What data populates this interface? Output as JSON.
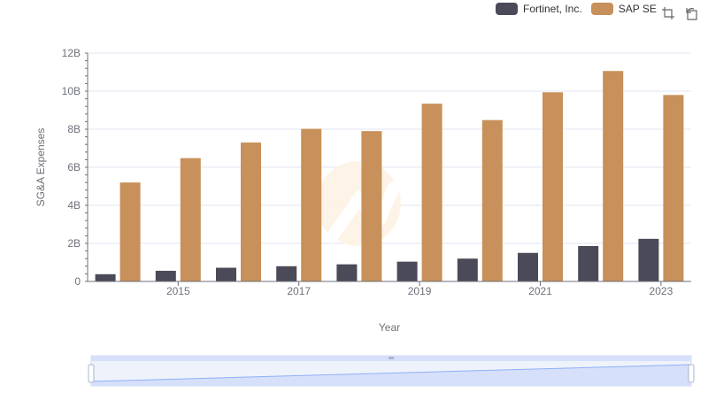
{
  "chart_data": {
    "type": "bar",
    "title": "",
    "xlabel": "Year",
    "ylabel": "SG&A Expenses",
    "categories": [
      "2014",
      "2015",
      "2016",
      "2017",
      "2018",
      "2019",
      "2020",
      "2021",
      "2022",
      "2023"
    ],
    "x_tick_labels": [
      "2015",
      "2017",
      "2019",
      "2021",
      "2023"
    ],
    "y_tick_labels": [
      "0",
      "2B",
      "4B",
      "6B",
      "8B",
      "10B",
      "12B"
    ],
    "ylim": [
      0,
      12000000000
    ],
    "series": [
      {
        "name": "Fortinet, Inc.",
        "color": "#4a4a58",
        "values": [
          380000000,
          560000000,
          720000000,
          800000000,
          900000000,
          1040000000,
          1200000000,
          1500000000,
          1860000000,
          2240000000
        ]
      },
      {
        "name": "SAP SE",
        "color": "#c8905a",
        "values": [
          5200000000,
          6480000000,
          7300000000,
          8020000000,
          7900000000,
          9340000000,
          8480000000,
          9940000000,
          11060000000,
          9800000000
        ]
      }
    ],
    "legend_position": "top-right",
    "grid": true
  },
  "legend": {
    "items": [
      {
        "label": "Fortinet, Inc.",
        "color": "#4a4a58"
      },
      {
        "label": "SAP SE",
        "color": "#c8905a"
      }
    ]
  },
  "toolbox": {
    "icons": [
      "zoom-icon",
      "restore-icon"
    ]
  }
}
